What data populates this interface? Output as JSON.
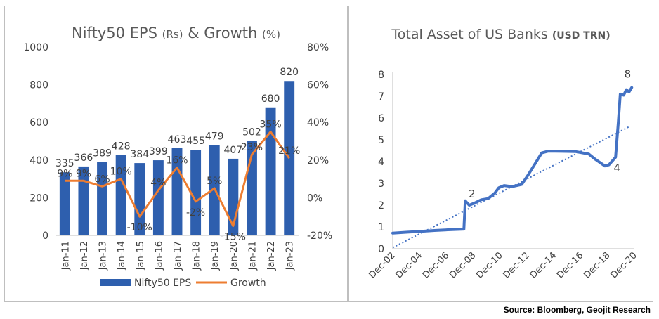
{
  "chart_data": [
    {
      "type": "bar",
      "title": "Nifty50  EPS",
      "title_unit1": "(Rs)",
      "title_mid": "& Growth",
      "title_unit2": "(%)",
      "categories": [
        "Jan-11",
        "Jan-12",
        "Jan-13",
        "Jan-14",
        "Jan-15",
        "Jan-16",
        "Jan-17",
        "Jan-18",
        "Jan-19",
        "Jan-20",
        "Jan-21",
        "Jan-22",
        "Jan-23"
      ],
      "series": [
        {
          "name": "Nifty50 EPS",
          "type": "bar",
          "axis": "left",
          "color": "#2e5fae",
          "values": [
            335,
            366,
            389,
            428,
            384,
            399,
            463,
            455,
            479,
            407,
            502,
            680,
            820
          ]
        },
        {
          "name": "Growth",
          "type": "line",
          "axis": "right",
          "color": "#ed7d31",
          "values": [
            9,
            9,
            6,
            10,
            -10,
            4,
            16,
            -2,
            5,
            -15,
            23,
            35,
            21
          ],
          "labels": [
            "9%",
            "9%",
            "6%",
            "10%",
            "-10%",
            "4%",
            "16%",
            "-2%",
            "5%",
            "-15%",
            "23%",
            "35%",
            "21%"
          ]
        }
      ],
      "ylim": [
        0,
        1000
      ],
      "yticks": [
        "0",
        "200",
        "400",
        "600",
        "800",
        "1000"
      ],
      "y2lim": [
        -20,
        80
      ],
      "y2ticks": [
        "-20%",
        "0%",
        "20%",
        "40%",
        "60%",
        "80%"
      ],
      "legend": "bottom"
    },
    {
      "type": "line",
      "title": "Total Asset of US Banks",
      "title_unit": "(USD TRN)",
      "xlabels": [
        "Dec-02",
        "Dec-04",
        "Dec-06",
        "Dec-08",
        "Dec-10",
        "Dec-12",
        "Dec-14",
        "Dec-16",
        "Dec-18",
        "Dec-20"
      ],
      "ylim": [
        0,
        8
      ],
      "yticks": [
        "0",
        "1",
        "2",
        "3",
        "4",
        "5",
        "6",
        "7",
        "8"
      ],
      "series": [
        {
          "name": "Total Assets",
          "color": "#4472c4",
          "points": [
            [
              2002.9,
              0.72
            ],
            [
              2004,
              0.76
            ],
            [
              2005,
              0.8
            ],
            [
              2006,
              0.84
            ],
            [
              2007,
              0.87
            ],
            [
              2008.2,
              0.9
            ],
            [
              2008.3,
              2.2
            ],
            [
              2008.6,
              2.0
            ],
            [
              2009,
              2.1
            ],
            [
              2009.5,
              2.25
            ],
            [
              2010,
              2.3
            ],
            [
              2010.5,
              2.55
            ],
            [
              2010.8,
              2.8
            ],
            [
              2011.2,
              2.9
            ],
            [
              2011.8,
              2.85
            ],
            [
              2012.5,
              2.95
            ],
            [
              2013,
              3.4
            ],
            [
              2013.5,
              3.9
            ],
            [
              2014,
              4.4
            ],
            [
              2014.5,
              4.48
            ],
            [
              2015.5,
              4.47
            ],
            [
              2016.5,
              4.46
            ],
            [
              2017.5,
              4.35
            ],
            [
              2018,
              4.1
            ],
            [
              2018.7,
              3.8
            ],
            [
              2019,
              3.85
            ],
            [
              2019.5,
              4.2
            ],
            [
              2019.7,
              5.8
            ],
            [
              2019.85,
              7.1
            ],
            [
              2020.1,
              7.05
            ],
            [
              2020.3,
              7.3
            ],
            [
              2020.5,
              7.2
            ],
            [
              2020.7,
              7.4
            ]
          ]
        },
        {
          "name": "Trend",
          "style": "dotted",
          "color": "#4472c4",
          "points": [
            [
              2002.9,
              0.05
            ],
            [
              2020.5,
              5.6
            ]
          ]
        }
      ],
      "annotations": [
        {
          "text": "2",
          "x": 2008.8,
          "y": 2.35
        },
        {
          "text": "4",
          "x": 2019.6,
          "y": 3.55
        },
        {
          "text": "8",
          "x": 2020.4,
          "y": 7.85
        }
      ]
    }
  ],
  "source": "Source: Bloomberg, Geojit Research"
}
